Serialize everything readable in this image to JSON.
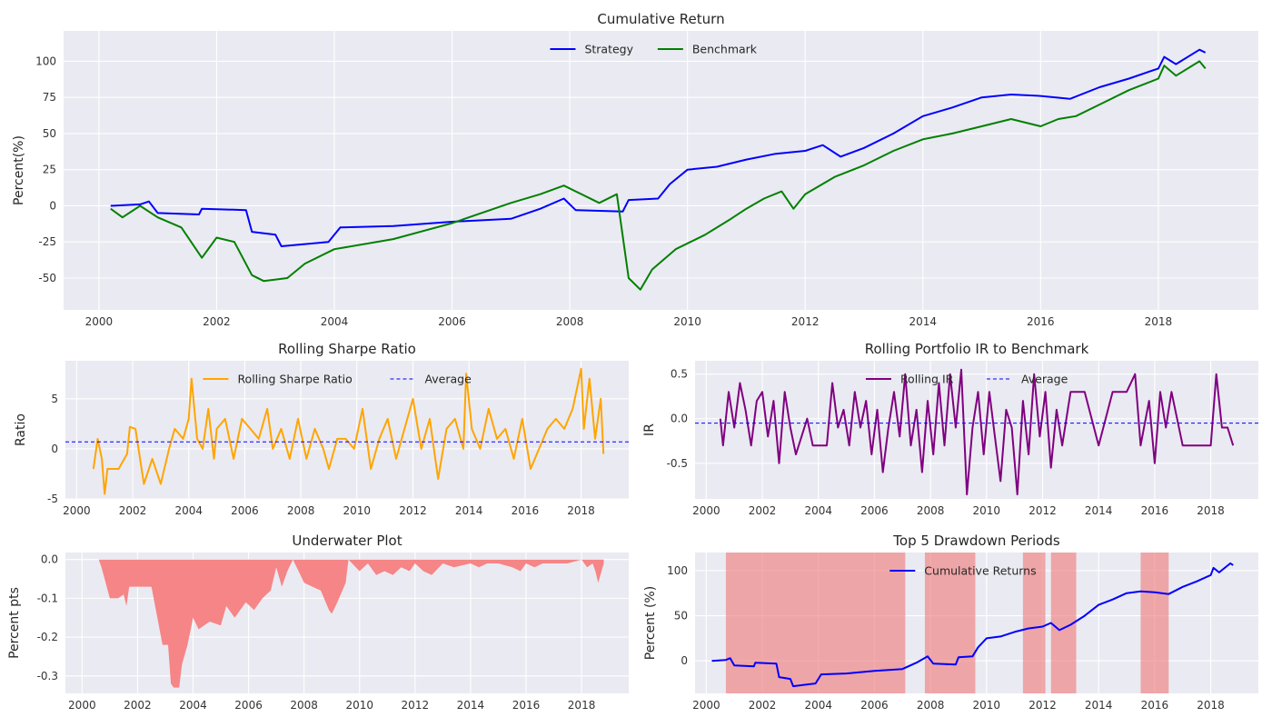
{
  "chart_data": [
    {
      "id": "cum",
      "type": "line",
      "title": "Cumulative Return",
      "ylabel": "Percent(%)",
      "xlabel": "",
      "xlim": [
        1999.4,
        2019.7
      ],
      "ylim": [
        -72,
        121
      ],
      "xticks": [
        2000,
        2002,
        2004,
        2006,
        2008,
        2010,
        2012,
        2014,
        2016,
        2018
      ],
      "yticks": [
        -50,
        -25,
        0,
        25,
        50,
        75,
        100
      ],
      "legend": "top-center",
      "grid": true,
      "series": [
        {
          "name": "Strategy",
          "color": "#0000ff",
          "x": [
            2000.2,
            2000.7,
            2000.85,
            2001.0,
            2001.7,
            2001.75,
            2002.5,
            2002.6,
            2003.0,
            2003.1,
            2003.9,
            2004.1,
            2005.0,
            2006.0,
            2007.0,
            2007.5,
            2007.9,
            2008.1,
            2008.9,
            2009.0,
            2009.5,
            2009.7,
            2010.0,
            2010.5,
            2011.0,
            2011.5,
            2012.0,
            2012.3,
            2012.6,
            2013.0,
            2013.5,
            2014.0,
            2014.5,
            2015.0,
            2015.5,
            2016.0,
            2016.5,
            2017.0,
            2017.5,
            2018.0,
            2018.1,
            2018.3,
            2018.7,
            2018.8
          ],
          "values": [
            0,
            1,
            3,
            -5,
            -6,
            -2,
            -3,
            -18,
            -20,
            -28,
            -25,
            -15,
            -14,
            -11,
            -9,
            -2,
            5,
            -3,
            -4,
            4,
            5,
            15,
            25,
            27,
            32,
            36,
            38,
            42,
            34,
            40,
            50,
            62,
            68,
            75,
            77,
            76,
            74,
            82,
            88,
            95,
            103,
            98,
            108,
            106
          ]
        },
        {
          "name": "Benchmark",
          "color": "#008000",
          "x": [
            2000.2,
            2000.4,
            2000.7,
            2001.0,
            2001.4,
            2001.75,
            2002.0,
            2002.3,
            2002.6,
            2002.8,
            2003.2,
            2003.5,
            2004.0,
            2005.0,
            2006.0,
            2007.0,
            2007.5,
            2007.9,
            2008.1,
            2008.5,
            2008.8,
            2009.0,
            2009.2,
            2009.4,
            2009.8,
            2010.3,
            2010.7,
            2011.0,
            2011.3,
            2011.6,
            2011.8,
            2012.0,
            2012.5,
            2013.0,
            2013.5,
            2014.0,
            2014.5,
            2015.0,
            2015.5,
            2016.0,
            2016.3,
            2016.6,
            2017.0,
            2017.5,
            2018.0,
            2018.1,
            2018.3,
            2018.7,
            2018.8
          ],
          "values": [
            -2,
            -8,
            0,
            -8,
            -15,
            -36,
            -22,
            -25,
            -48,
            -52,
            -50,
            -40,
            -30,
            -23,
            -12,
            2,
            8,
            14,
            10,
            2,
            8,
            -50,
            -58,
            -44,
            -30,
            -20,
            -10,
            -2,
            5,
            10,
            -2,
            8,
            20,
            28,
            38,
            46,
            50,
            55,
            60,
            55,
            60,
            62,
            70,
            80,
            88,
            97,
            90,
            100,
            95
          ]
        }
      ]
    },
    {
      "id": "sharpe",
      "type": "line",
      "title": "Rolling Sharpe Ratio",
      "ylabel": "Ratio",
      "xlabel": "",
      "xlim": [
        1999.6,
        2019.7
      ],
      "ylim": [
        -5,
        8.8
      ],
      "xticks": [
        2000,
        2002,
        2004,
        2006,
        2008,
        2010,
        2012,
        2014,
        2016,
        2018
      ],
      "yticks": [
        -5,
        0,
        5
      ],
      "legend": "top-center",
      "grid": true,
      "average": 0.7,
      "series": [
        {
          "name": "Rolling Sharpe Ratio",
          "color": "#ffa500",
          "x": [
            2000.6,
            2000.75,
            2000.9,
            2001.0,
            2001.1,
            2001.3,
            2001.5,
            2001.8,
            2001.9,
            2002.1,
            2002.4,
            2002.7,
            2003.0,
            2003.3,
            2003.5,
            2003.8,
            2004.0,
            2004.1,
            2004.3,
            2004.5,
            2004.7,
            2004.9,
            2005.0,
            2005.3,
            2005.6,
            2005.9,
            2006.2,
            2006.5,
            2006.8,
            2007.0,
            2007.3,
            2007.6,
            2007.9,
            2008.2,
            2008.5,
            2008.8,
            2009.0,
            2009.3,
            2009.6,
            2009.9,
            2010.2,
            2010.5,
            2010.8,
            2011.1,
            2011.4,
            2011.7,
            2012.0,
            2012.3,
            2012.6,
            2012.9,
            2013.2,
            2013.5,
            2013.8,
            2013.9,
            2014.1,
            2014.4,
            2014.7,
            2015.0,
            2015.3,
            2015.6,
            2015.9,
            2016.2,
            2016.5,
            2016.8,
            2017.1,
            2017.4,
            2017.7,
            2018.0,
            2018.1,
            2018.3,
            2018.5,
            2018.7,
            2018.8
          ],
          "values": [
            -2,
            1,
            -1,
            -4.5,
            -2,
            -2,
            -2,
            -0.5,
            2.2,
            2,
            -3.5,
            -1,
            -3.5,
            0,
            2,
            1,
            3,
            7,
            1,
            0,
            4,
            -1,
            2,
            3,
            -1,
            3,
            2,
            1,
            4,
            0,
            2,
            -1,
            3,
            -1,
            2,
            0,
            -2,
            1,
            1,
            0,
            4,
            -2,
            1,
            3,
            -1,
            2,
            5,
            0,
            3,
            -3,
            2,
            3,
            0,
            7.5,
            2,
            0,
            4,
            1,
            2,
            -1,
            3,
            -2,
            0,
            2,
            3,
            2,
            4,
            8,
            2,
            7,
            1,
            5,
            -0.5
          ]
        }
      ]
    },
    {
      "id": "ir",
      "type": "line",
      "title": "Rolling Portfolio IR to Benchmark",
      "ylabel": "IR",
      "xlabel": "",
      "xlim": [
        1999.6,
        2019.7
      ],
      "ylim": [
        -0.9,
        0.65
      ],
      "xticks": [
        2000,
        2002,
        2004,
        2006,
        2008,
        2010,
        2012,
        2014,
        2016,
        2018
      ],
      "yticks": [
        -0.5,
        0.0,
        0.5
      ],
      "legend": "top-center",
      "grid": true,
      "average": -0.05,
      "series": [
        {
          "name": "Rolling IR",
          "color": "#800080",
          "x": [
            2000.5,
            2000.6,
            2000.8,
            2001.0,
            2001.2,
            2001.4,
            2001.6,
            2001.8,
            2002.0,
            2002.2,
            2002.4,
            2002.6,
            2002.8,
            2003.0,
            2003.2,
            2003.4,
            2003.6,
            2003.8,
            2004.3,
            2004.5,
            2004.7,
            2004.9,
            2005.1,
            2005.3,
            2005.5,
            2005.7,
            2005.9,
            2006.1,
            2006.3,
            2006.5,
            2006.7,
            2006.9,
            2007.1,
            2007.3,
            2007.5,
            2007.7,
            2007.9,
            2008.1,
            2008.3,
            2008.5,
            2008.7,
            2008.9,
            2009.1,
            2009.3,
            2009.5,
            2009.7,
            2009.9,
            2010.1,
            2010.3,
            2010.5,
            2010.7,
            2010.9,
            2011.1,
            2011.3,
            2011.5,
            2011.7,
            2011.9,
            2012.1,
            2012.3,
            2012.5,
            2012.7,
            2013.0,
            2013.5,
            2014.0,
            2014.5,
            2015.0,
            2015.3,
            2015.5,
            2015.8,
            2016.0,
            2016.2,
            2016.4,
            2016.6,
            2017.0,
            2017.5,
            2018.0,
            2018.2,
            2018.4,
            2018.6,
            2018.8
          ],
          "values": [
            0,
            -0.3,
            0.3,
            -0.1,
            0.4,
            0.1,
            -0.3,
            0.2,
            0.3,
            -0.2,
            0.2,
            -0.5,
            0.3,
            -0.1,
            -0.4,
            -0.2,
            0,
            -0.3,
            -0.3,
            0.4,
            -0.1,
            0.1,
            -0.3,
            0.3,
            -0.1,
            0.2,
            -0.4,
            0.1,
            -0.6,
            -0.1,
            0.3,
            -0.2,
            0.5,
            -0.3,
            0.1,
            -0.6,
            0.2,
            -0.4,
            0.4,
            -0.3,
            0.5,
            -0.1,
            0.55,
            -0.85,
            -0.1,
            0.3,
            -0.4,
            0.3,
            -0.2,
            -0.7,
            0.1,
            -0.1,
            -0.85,
            0.2,
            -0.4,
            0.5,
            -0.2,
            0.3,
            -0.55,
            0.1,
            -0.3,
            0.3,
            0.3,
            -0.3,
            0.3,
            0.3,
            0.5,
            -0.3,
            0.2,
            -0.5,
            0.3,
            -0.1,
            0.3,
            -0.3,
            -0.3,
            -0.3,
            0.5,
            -0.1,
            -0.1,
            -0.3
          ]
        }
      ]
    },
    {
      "id": "underwater",
      "type": "area",
      "title": "Underwater Plot",
      "ylabel": "Percent pts",
      "xlabel": "",
      "xlim": [
        1999.4,
        2019.7
      ],
      "ylim": [
        -0.345,
        0.018
      ],
      "xticks": [
        2000,
        2002,
        2004,
        2006,
        2008,
        2010,
        2012,
        2014,
        2016,
        2018
      ],
      "yticks": [
        0.0,
        -0.1,
        -0.2,
        -0.3
      ],
      "grid": true,
      "series": [
        {
          "name": "",
          "color": "#f57f7f",
          "x": [
            2000.2,
            2000.6,
            2000.7,
            2001.0,
            2001.3,
            2001.5,
            2001.6,
            2001.7,
            2001.8,
            2002.4,
            2002.5,
            2002.9,
            2003.0,
            2003.1,
            2003.2,
            2003.3,
            2003.5,
            2003.6,
            2003.8,
            2004.0,
            2004.2,
            2004.6,
            2005.0,
            2005.2,
            2005.5,
            2005.9,
            2006.2,
            2006.5,
            2006.8,
            2007.0,
            2007.2,
            2007.4,
            2007.6,
            2007.8,
            2008.0,
            2008.3,
            2008.6,
            2008.9,
            2009.0,
            2009.2,
            2009.5,
            2009.6,
            2010.0,
            2010.3,
            2010.6,
            2010.9,
            2011.2,
            2011.5,
            2011.8,
            2012.0,
            2012.3,
            2012.6,
            2013.0,
            2013.4,
            2014.0,
            2014.3,
            2014.6,
            2015.0,
            2015.5,
            2015.8,
            2016.0,
            2016.3,
            2016.6,
            2017.0,
            2017.5,
            2018.0,
            2018.2,
            2018.4,
            2018.5,
            2018.6,
            2018.8
          ],
          "values": [
            0,
            0,
            -0.02,
            -0.1,
            -0.1,
            -0.09,
            -0.12,
            -0.07,
            -0.07,
            -0.07,
            -0.07,
            -0.22,
            -0.22,
            -0.22,
            -0.32,
            -0.33,
            -0.33,
            -0.27,
            -0.22,
            -0.15,
            -0.18,
            -0.16,
            -0.17,
            -0.12,
            -0.15,
            -0.11,
            -0.13,
            -0.1,
            -0.08,
            -0.02,
            -0.07,
            -0.03,
            0,
            -0.03,
            -0.06,
            -0.07,
            -0.08,
            -0.13,
            -0.14,
            -0.11,
            -0.06,
            0,
            -0.03,
            -0.01,
            -0.04,
            -0.03,
            -0.04,
            -0.02,
            -0.03,
            -0.01,
            -0.03,
            -0.04,
            -0.01,
            -0.02,
            -0.01,
            -0.02,
            -0.01,
            -0.01,
            -0.02,
            -0.03,
            -0.01,
            -0.02,
            -0.01,
            -0.01,
            -0.01,
            0,
            -0.02,
            -0.01,
            -0.03,
            -0.06,
            -0.01
          ]
        }
      ]
    },
    {
      "id": "drawdown",
      "type": "line",
      "title": "Top 5 Drawdown Periods",
      "ylabel": "Percent (%)",
      "xlabel": "",
      "xlim": [
        1999.6,
        2019.7
      ],
      "ylim": [
        -36,
        120
      ],
      "xticks": [
        2000,
        2002,
        2004,
        2006,
        2008,
        2010,
        2012,
        2014,
        2016,
        2018
      ],
      "yticks": [
        0,
        50,
        100
      ],
      "legend": "top-center",
      "grid": true,
      "drawdown_periods": [
        [
          2000.7,
          2007.1
        ],
        [
          2007.8,
          2009.6
        ],
        [
          2011.3,
          2012.1
        ],
        [
          2012.3,
          2013.2
        ],
        [
          2015.5,
          2016.5
        ]
      ],
      "series": [
        {
          "name": "Cumulative Returns",
          "color": "#0000ff",
          "x": [
            2000.2,
            2000.7,
            2000.85,
            2001.0,
            2001.7,
            2001.75,
            2002.5,
            2002.6,
            2003.0,
            2003.1,
            2003.9,
            2004.1,
            2005.0,
            2006.0,
            2007.0,
            2007.5,
            2007.9,
            2008.1,
            2008.9,
            2009.0,
            2009.5,
            2009.7,
            2010.0,
            2010.5,
            2011.0,
            2011.5,
            2012.0,
            2012.3,
            2012.6,
            2013.0,
            2013.5,
            2014.0,
            2014.5,
            2015.0,
            2015.5,
            2016.0,
            2016.5,
            2017.0,
            2017.5,
            2018.0,
            2018.1,
            2018.3,
            2018.7,
            2018.8
          ],
          "values": [
            0,
            1,
            3,
            -5,
            -6,
            -2,
            -3,
            -18,
            -20,
            -28,
            -25,
            -15,
            -14,
            -11,
            -9,
            -2,
            5,
            -3,
            -4,
            4,
            5,
            15,
            25,
            27,
            32,
            36,
            38,
            42,
            34,
            40,
            50,
            62,
            68,
            75,
            77,
            76,
            74,
            82,
            88,
            95,
            103,
            98,
            108,
            106
          ]
        }
      ]
    }
  ]
}
